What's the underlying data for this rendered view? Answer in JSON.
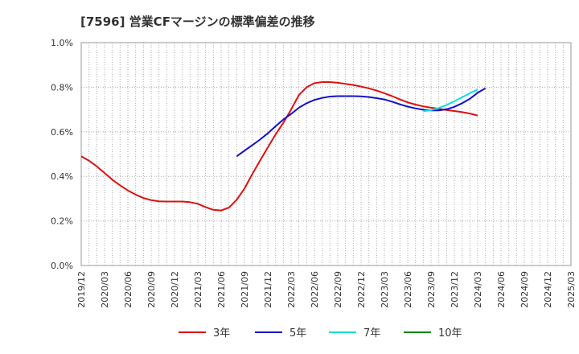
{
  "title": "[7596]  営業CFマージンの標準偏差の推移",
  "chart_data": {
    "type": "line",
    "title": "[7596]  営業CFマージンの標準偏差の推移",
    "xlabel": "",
    "ylabel": "",
    "x_ticks": [
      "2019/12",
      "2020/03",
      "2020/06",
      "2020/09",
      "2020/12",
      "2021/03",
      "2021/06",
      "2021/09",
      "2021/12",
      "2022/03",
      "2022/06",
      "2022/09",
      "2022/12",
      "2023/03",
      "2023/06",
      "2023/09",
      "2023/12",
      "2024/03",
      "2024/06",
      "2024/09",
      "2024/12",
      "2025/03"
    ],
    "y_ticks": [
      "0.0%",
      "0.2%",
      "0.4%",
      "0.6%",
      "0.8%",
      "1.0%"
    ],
    "ylim": [
      0,
      1.0
    ],
    "y_unit": "%",
    "grid": true,
    "legend_position": "bottom",
    "series": [
      {
        "name": "3年",
        "color": "#dd1111",
        "points": [
          [
            "2019/12",
            0.49
          ],
          [
            "2020/01",
            0.47
          ],
          [
            "2020/02",
            0.445
          ],
          [
            "2020/03",
            0.415
          ],
          [
            "2020/04",
            0.385
          ],
          [
            "2020/05",
            0.36
          ],
          [
            "2020/06",
            0.337
          ],
          [
            "2020/07",
            0.318
          ],
          [
            "2020/08",
            0.303
          ],
          [
            "2020/09",
            0.293
          ],
          [
            "2020/10",
            0.288
          ],
          [
            "2020/11",
            0.287
          ],
          [
            "2020/12",
            0.287
          ],
          [
            "2021/01",
            0.287
          ],
          [
            "2021/02",
            0.284
          ],
          [
            "2021/03",
            0.277
          ],
          [
            "2021/04",
            0.262
          ],
          [
            "2021/05",
            0.25
          ],
          [
            "2021/06",
            0.247
          ],
          [
            "2021/07",
            0.26
          ],
          [
            "2021/08",
            0.295
          ],
          [
            "2021/09",
            0.345
          ],
          [
            "2021/10",
            0.41
          ],
          [
            "2021/11",
            0.47
          ],
          [
            "2021/12",
            0.53
          ],
          [
            "2022/01",
            0.588
          ],
          [
            "2022/02",
            0.64
          ],
          [
            "2022/03",
            0.7
          ],
          [
            "2022/04",
            0.765
          ],
          [
            "2022/05",
            0.8
          ],
          [
            "2022/06",
            0.818
          ],
          [
            "2022/07",
            0.823
          ],
          [
            "2022/08",
            0.823
          ],
          [
            "2022/09",
            0.82
          ],
          [
            "2022/10",
            0.815
          ],
          [
            "2022/11",
            0.81
          ],
          [
            "2022/12",
            0.803
          ],
          [
            "2023/01",
            0.795
          ],
          [
            "2023/02",
            0.785
          ],
          [
            "2023/03",
            0.773
          ],
          [
            "2023/04",
            0.76
          ],
          [
            "2023/05",
            0.745
          ],
          [
            "2023/06",
            0.732
          ],
          [
            "2023/07",
            0.722
          ],
          [
            "2023/08",
            0.714
          ],
          [
            "2023/09",
            0.708
          ],
          [
            "2023/10",
            0.703
          ],
          [
            "2023/11",
            0.698
          ],
          [
            "2023/12",
            0.693
          ],
          [
            "2024/01",
            0.688
          ],
          [
            "2024/02",
            0.682
          ],
          [
            "2024/03",
            0.673
          ]
        ]
      },
      {
        "name": "5年",
        "color": "#1111cc",
        "points": [
          [
            "2021/08",
            0.49
          ],
          [
            "2021/09",
            0.515
          ],
          [
            "2021/10",
            0.54
          ],
          [
            "2021/11",
            0.565
          ],
          [
            "2021/12",
            0.593
          ],
          [
            "2022/01",
            0.625
          ],
          [
            "2022/02",
            0.655
          ],
          [
            "2022/03",
            0.68
          ],
          [
            "2022/04",
            0.708
          ],
          [
            "2022/05",
            0.728
          ],
          [
            "2022/06",
            0.743
          ],
          [
            "2022/07",
            0.752
          ],
          [
            "2022/08",
            0.758
          ],
          [
            "2022/09",
            0.76
          ],
          [
            "2022/10",
            0.76
          ],
          [
            "2022/11",
            0.76
          ],
          [
            "2022/12",
            0.759
          ],
          [
            "2023/01",
            0.756
          ],
          [
            "2023/02",
            0.751
          ],
          [
            "2023/03",
            0.745
          ],
          [
            "2023/04",
            0.735
          ],
          [
            "2023/05",
            0.723
          ],
          [
            "2023/06",
            0.713
          ],
          [
            "2023/07",
            0.705
          ],
          [
            "2023/08",
            0.699
          ],
          [
            "2023/09",
            0.696
          ],
          [
            "2023/10",
            0.696
          ],
          [
            "2023/11",
            0.701
          ],
          [
            "2023/12",
            0.712
          ],
          [
            "2024/01",
            0.728
          ],
          [
            "2024/02",
            0.748
          ],
          [
            "2024/03",
            0.775
          ],
          [
            "2024/04",
            0.795
          ]
        ]
      },
      {
        "name": "7年",
        "color": "#11dddd",
        "points": [
          [
            "2023/08",
            0.692
          ],
          [
            "2023/09",
            0.697
          ],
          [
            "2023/10",
            0.707
          ],
          [
            "2023/11",
            0.72
          ],
          [
            "2023/12",
            0.737
          ],
          [
            "2024/01",
            0.755
          ],
          [
            "2024/02",
            0.773
          ],
          [
            "2024/03",
            0.79
          ]
        ]
      },
      {
        "name": "10年",
        "color": "#118811",
        "points": []
      }
    ]
  }
}
